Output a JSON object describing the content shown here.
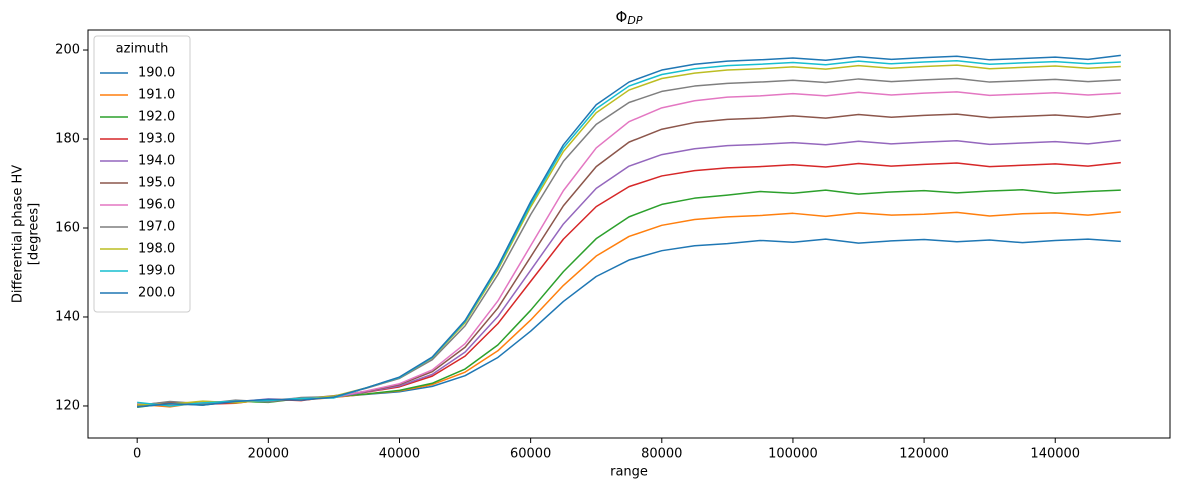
{
  "chart_data": {
    "type": "line",
    "title": "Φ",
    "title_sub": "DP",
    "xlabel": "range",
    "ylabel": [
      "Differential phase HV",
      "[degrees]"
    ],
    "legend_title": "azimuth",
    "legend": "upper left",
    "grid": false,
    "xlim": [
      -7500,
      157500
    ],
    "xticks": [
      0,
      20000,
      40000,
      60000,
      80000,
      100000,
      120000,
      140000
    ],
    "ylim": [
      112.8,
      204.5
    ],
    "yticks": [
      120,
      140,
      160,
      180,
      200
    ],
    "x": [
      0,
      5000,
      10000,
      15000,
      20000,
      25000,
      30000,
      35000,
      40000,
      45000,
      50000,
      55000,
      60000,
      65000,
      70000,
      75000,
      80000,
      85000,
      90000,
      95000,
      100000,
      105000,
      110000,
      115000,
      120000,
      125000,
      130000,
      135000,
      140000,
      145000,
      150000
    ],
    "series": [
      {
        "name": "190.0",
        "color": "#1f77b4",
        "values": [
          120.0,
          120.3,
          120.6,
          121.0,
          121.2,
          121.5,
          122.0,
          122.6,
          123.2,
          124.4,
          126.8,
          130.9,
          136.8,
          143.5,
          149.1,
          152.8,
          154.9,
          156.0,
          156.5,
          157.2,
          156.8,
          157.5,
          156.6,
          157.1,
          157.4,
          156.9,
          157.3,
          156.7,
          157.2,
          157.5,
          157.0
        ]
      },
      {
        "name": "191.0",
        "color": "#ff7f0e",
        "values": [
          120.4,
          119.8,
          120.9,
          120.7,
          121.4,
          121.3,
          121.9,
          122.7,
          123.4,
          124.8,
          127.6,
          132.4,
          139.3,
          147.1,
          153.7,
          158.1,
          160.6,
          161.9,
          162.5,
          162.8,
          163.3,
          162.6,
          163.4,
          162.9,
          163.1,
          163.5,
          162.7,
          163.2,
          163.4,
          162.9,
          163.6
        ]
      },
      {
        "name": "192.0",
        "color": "#2ca02c",
        "values": [
          119.7,
          120.6,
          120.2,
          121.1,
          120.8,
          121.7,
          122.1,
          122.7,
          123.5,
          125.1,
          128.3,
          133.7,
          141.5,
          150.2,
          157.6,
          162.5,
          165.3,
          166.7,
          167.4,
          168.2,
          167.8,
          168.5,
          167.6,
          168.1,
          168.4,
          167.9,
          168.3,
          168.6,
          167.8,
          168.2,
          168.5
        ]
      },
      {
        "name": "193.0",
        "color": "#d62728",
        "values": [
          120.2,
          120.9,
          120.4,
          120.6,
          121.5,
          121.2,
          122.2,
          123.1,
          124.3,
          126.7,
          131.2,
          138.5,
          148.0,
          157.5,
          164.8,
          169.3,
          171.7,
          172.9,
          173.5,
          173.8,
          174.2,
          173.7,
          174.5,
          173.9,
          174.3,
          174.6,
          173.8,
          174.1,
          174.4,
          173.9,
          174.7
        ]
      },
      {
        "name": "194.0",
        "color": "#9467bd",
        "values": [
          120.5,
          120.1,
          121.0,
          120.8,
          121.3,
          121.8,
          121.9,
          123.2,
          124.5,
          127.1,
          132.1,
          140.1,
          150.5,
          160.9,
          168.9,
          173.9,
          176.5,
          177.8,
          178.5,
          178.8,
          179.2,
          178.7,
          179.5,
          178.9,
          179.3,
          179.6,
          178.8,
          179.1,
          179.4,
          178.9,
          179.7
        ]
      },
      {
        "name": "195.0",
        "color": "#8c564b",
        "values": [
          119.9,
          120.7,
          120.3,
          121.2,
          121.0,
          121.6,
          122.3,
          123.3,
          124.8,
          127.7,
          133.2,
          142.0,
          153.5,
          165.0,
          173.8,
          179.3,
          182.2,
          183.7,
          184.4,
          184.7,
          185.2,
          184.7,
          185.5,
          184.9,
          185.3,
          185.6,
          184.8,
          185.1,
          185.4,
          184.9,
          185.7
        ]
      },
      {
        "name": "196.0",
        "color": "#e377c2",
        "values": [
          120.6,
          120.2,
          120.8,
          120.9,
          121.6,
          121.4,
          122.0,
          123.4,
          125.0,
          128.1,
          134.0,
          143.6,
          156.0,
          168.4,
          178.0,
          183.9,
          187.0,
          188.6,
          189.4,
          189.7,
          190.2,
          189.7,
          190.5,
          189.9,
          190.3,
          190.6,
          189.8,
          190.1,
          190.4,
          189.9,
          190.3
        ]
      },
      {
        "name": "197.0",
        "color": "#7f7f7f",
        "values": [
          120.1,
          121.0,
          120.5,
          121.3,
          120.9,
          121.9,
          122.1,
          124.0,
          126.2,
          130.4,
          138.0,
          149.5,
          163.0,
          175.0,
          183.3,
          188.2,
          190.7,
          191.9,
          192.5,
          192.8,
          193.2,
          192.7,
          193.5,
          192.9,
          193.3,
          193.6,
          192.8,
          193.1,
          193.4,
          192.9,
          193.3
        ]
      },
      {
        "name": "198.0",
        "color": "#bcbd22",
        "values": [
          120.3,
          120.4,
          121.1,
          120.7,
          121.4,
          121.5,
          122.2,
          124.1,
          126.4,
          130.8,
          138.7,
          150.6,
          164.7,
          177.2,
          185.9,
          191.0,
          193.6,
          194.8,
          195.5,
          195.8,
          196.2,
          195.7,
          196.5,
          195.9,
          196.3,
          196.6,
          195.8,
          196.1,
          196.4,
          195.9,
          196.3
        ]
      },
      {
        "name": "199.0",
        "color": "#17becf",
        "values": [
          120.8,
          120.0,
          120.7,
          121.1,
          121.2,
          121.7,
          121.8,
          124.1,
          126.4,
          130.9,
          139.0,
          151.0,
          165.3,
          178.0,
          186.8,
          191.9,
          194.5,
          195.8,
          196.5,
          196.8,
          197.2,
          196.7,
          197.5,
          196.9,
          197.3,
          197.6,
          196.8,
          197.1,
          197.4,
          196.9,
          197.3
        ]
      },
      {
        "name": "200.0",
        "color": "#1f77b4",
        "values": [
          119.8,
          120.5,
          120.2,
          121.0,
          121.5,
          121.3,
          122.0,
          124.1,
          126.5,
          131.0,
          139.2,
          151.4,
          165.9,
          178.7,
          187.7,
          192.8,
          195.5,
          196.8,
          197.5,
          197.8,
          198.2,
          197.7,
          198.5,
          197.9,
          198.3,
          198.6,
          197.8,
          198.1,
          198.4,
          197.9,
          198.8
        ]
      }
    ]
  }
}
